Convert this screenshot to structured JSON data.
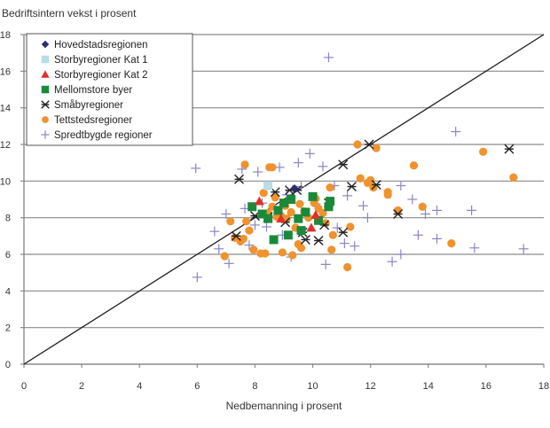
{
  "chart_data": {
    "type": "scatter",
    "title": "",
    "ylabel": "Bedriftsintern vekst i prosent",
    "xlabel": "Nedbemanning i prosent",
    "xlim": [
      0,
      18
    ],
    "ylim": [
      0,
      18
    ],
    "xticks": [
      "0",
      "2",
      "4",
      "6",
      "8",
      "10",
      "12",
      "14",
      "16",
      "18"
    ],
    "yticks": [
      "0",
      "2",
      "4",
      "6",
      "8",
      "10",
      "12",
      "14",
      "16",
      "18"
    ],
    "grid": "horizontal",
    "reference_line": {
      "name": "y = x",
      "from": [
        0,
        0
      ],
      "to": [
        18,
        18
      ]
    },
    "legend_position": "top-left",
    "series": [
      {
        "name": "Hovedstadsregionen",
        "marker": "diamond",
        "color": "#2b2f6e",
        "points": [
          [
            9.37,
            9.58
          ]
        ]
      },
      {
        "name": "Storbyregioner Kat 1",
        "marker": "square",
        "color": "#b8dce8",
        "points": [
          [
            8.45,
            9.75
          ]
        ]
      },
      {
        "name": "Storbyregioner Kat 2",
        "marker": "triangle",
        "color": "#e0302a",
        "points": [
          [
            8.15,
            8.9
          ],
          [
            8.9,
            7.95
          ],
          [
            10.1,
            8.15
          ],
          [
            9.95,
            7.45
          ]
        ]
      },
      {
        "name": "Mellomstore byer",
        "marker": "square",
        "color": "#1a8a3a",
        "points": [
          [
            7.9,
            8.6
          ],
          [
            8.45,
            7.95
          ],
          [
            9.0,
            8.8
          ],
          [
            9.25,
            9.0
          ],
          [
            9.6,
            7.3
          ],
          [
            10.0,
            9.15
          ],
          [
            10.55,
            8.6
          ],
          [
            10.2,
            7.85
          ],
          [
            8.65,
            6.8
          ],
          [
            9.15,
            7.05
          ],
          [
            8.8,
            8.4
          ],
          [
            9.5,
            7.95
          ],
          [
            9.75,
            8.3
          ],
          [
            10.6,
            8.9
          ],
          [
            8.25,
            8.2
          ]
        ]
      },
      {
        "name": "Småbyregioner",
        "marker": "asterisk",
        "color": "#222222",
        "points": [
          [
            7.45,
            10.1
          ],
          [
            8.45,
            8.05
          ],
          [
            8.7,
            9.4
          ],
          [
            9.2,
            9.5
          ],
          [
            9.45,
            9.5
          ],
          [
            9.05,
            7.75
          ],
          [
            9.65,
            7.2
          ],
          [
            10.55,
            8.8
          ],
          [
            10.4,
            7.6
          ],
          [
            10.2,
            6.75
          ],
          [
            11.05,
            7.2
          ],
          [
            11.05,
            10.9
          ],
          [
            11.35,
            9.7
          ],
          [
            11.95,
            12.0
          ],
          [
            12.2,
            9.8
          ],
          [
            12.95,
            8.2
          ],
          [
            16.8,
            11.75
          ],
          [
            7.35,
            7.0
          ],
          [
            8.0,
            8.1
          ],
          [
            9.75,
            6.8
          ]
        ]
      },
      {
        "name": "Tettstedsregioner",
        "marker": "circle",
        "color": "#f0922e",
        "points": [
          [
            7.15,
            7.8
          ],
          [
            7.3,
            6.9
          ],
          [
            7.5,
            6.7
          ],
          [
            7.6,
            6.85
          ],
          [
            7.7,
            7.8
          ],
          [
            7.8,
            7.3
          ],
          [
            7.95,
            6.25
          ],
          [
            8.2,
            6.05
          ],
          [
            8.35,
            6.05
          ],
          [
            8.5,
            10.75
          ],
          [
            8.6,
            10.75
          ],
          [
            8.3,
            9.35
          ],
          [
            8.45,
            8.25
          ],
          [
            8.6,
            8.6
          ],
          [
            8.75,
            8.05
          ],
          [
            8.9,
            8.1
          ],
          [
            9.1,
            7.95
          ],
          [
            9.25,
            8.3
          ],
          [
            9.4,
            7.45
          ],
          [
            9.55,
            8.75
          ],
          [
            9.7,
            8.35
          ],
          [
            9.85,
            8.0
          ],
          [
            9.6,
            6.35
          ],
          [
            9.5,
            6.55
          ],
          [
            10.05,
            8.8
          ],
          [
            10.1,
            9.05
          ],
          [
            10.2,
            8.5
          ],
          [
            10.35,
            8.25
          ],
          [
            10.6,
            9.65
          ],
          [
            10.65,
            6.25
          ],
          [
            10.7,
            7.05
          ],
          [
            11.2,
            5.3
          ],
          [
            11.55,
            12.0
          ],
          [
            11.65,
            10.15
          ],
          [
            11.9,
            9.9
          ],
          [
            12.1,
            9.65
          ],
          [
            12.2,
            11.8
          ],
          [
            12.0,
            10.05
          ],
          [
            12.6,
            9.4
          ],
          [
            12.6,
            9.25
          ],
          [
            12.95,
            8.4
          ],
          [
            13.5,
            10.85
          ],
          [
            13.8,
            8.6
          ],
          [
            14.8,
            6.6
          ],
          [
            15.9,
            11.6
          ],
          [
            16.95,
            10.2
          ],
          [
            7.65,
            10.9
          ],
          [
            6.95,
            5.9
          ],
          [
            8.95,
            6.1
          ],
          [
            9.3,
            5.95
          ],
          [
            8.7,
            9.1
          ],
          [
            9.05,
            8.65
          ],
          [
            10.45,
            7.7
          ],
          [
            11.3,
            7.5
          ]
        ]
      },
      {
        "name": "Spredtbygde regioner",
        "marker": "plus",
        "color": "#8a85c8",
        "points": [
          [
            5.95,
            10.7
          ],
          [
            6.0,
            4.75
          ],
          [
            6.6,
            7.25
          ],
          [
            6.75,
            6.3
          ],
          [
            7.0,
            8.2
          ],
          [
            7.1,
            5.5
          ],
          [
            7.55,
            10.65
          ],
          [
            7.65,
            8.5
          ],
          [
            7.8,
            6.5
          ],
          [
            8.1,
            10.5
          ],
          [
            8.25,
            8.8
          ],
          [
            8.4,
            7.5
          ],
          [
            8.85,
            10.75
          ],
          [
            9.1,
            9.25
          ],
          [
            9.25,
            5.85
          ],
          [
            9.5,
            11.0
          ],
          [
            9.9,
            11.5
          ],
          [
            10.1,
            8.75
          ],
          [
            10.35,
            10.8
          ],
          [
            10.45,
            5.45
          ],
          [
            10.55,
            16.75
          ],
          [
            10.75,
            9.75
          ],
          [
            10.85,
            7.45
          ],
          [
            11.1,
            6.6
          ],
          [
            11.45,
            6.45
          ],
          [
            11.75,
            8.65
          ],
          [
            11.9,
            8.0
          ],
          [
            12.75,
            5.6
          ],
          [
            13.05,
            9.75
          ],
          [
            13.05,
            6.0
          ],
          [
            13.45,
            9.0
          ],
          [
            13.65,
            7.05
          ],
          [
            13.9,
            8.2
          ],
          [
            14.3,
            6.85
          ],
          [
            14.3,
            8.4
          ],
          [
            14.95,
            12.7
          ],
          [
            15.5,
            8.4
          ],
          [
            15.6,
            6.35
          ],
          [
            17.3,
            6.3
          ],
          [
            8.0,
            7.6
          ],
          [
            8.95,
            7.05
          ],
          [
            9.6,
            9.7
          ],
          [
            11.2,
            9.2
          ]
        ]
      }
    ]
  }
}
